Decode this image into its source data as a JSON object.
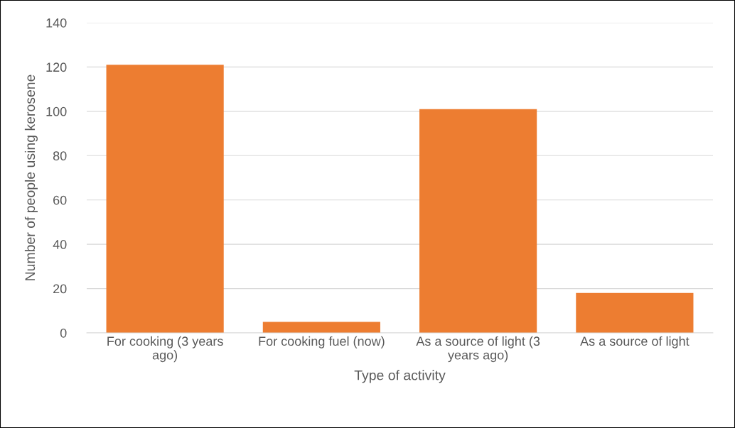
{
  "chart_data": {
    "type": "bar",
    "xlabel": "Type of activity",
    "ylabel": "Number of people using kerosene",
    "categories": [
      "For cooking (3 years ago)",
      "For cooking fuel (now)",
      "As a source of light (3 years ago)",
      "As a source of light"
    ],
    "values": [
      121,
      5,
      101,
      18
    ],
    "color": "#ed7d31",
    "ylim": [
      0,
      140
    ],
    "yticks": [
      0,
      20,
      40,
      60,
      80,
      100,
      120,
      140
    ],
    "grid": "y"
  }
}
